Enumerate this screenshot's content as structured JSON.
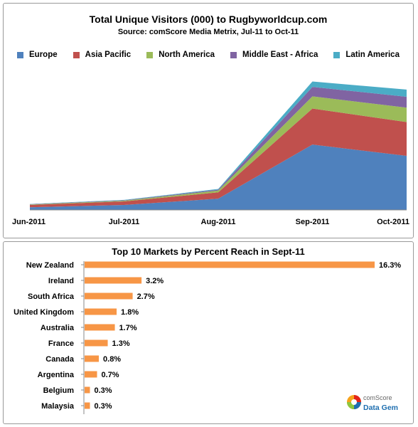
{
  "chart_data": [
    {
      "type": "area",
      "title": "Total Unique Visitors (000) to Rugbyworldcup.com",
      "subtitle": "Source: comScore Media Metrix, Jul-11 to Oct-11",
      "stacked": true,
      "x": [
        "Jun-2011",
        "Jul-2011",
        "Aug-2011",
        "Sep-2011",
        "Oct-2011"
      ],
      "ylim": [
        0,
        3000
      ],
      "grid": false,
      "legend": "top",
      "series": [
        {
          "name": "Europe",
          "color": "#4f81bd",
          "values": [
            60,
            110,
            250,
            1450,
            1200
          ]
        },
        {
          "name": "Asia Pacific",
          "color": "#c0504d",
          "values": [
            50,
            80,
            140,
            800,
            750
          ]
        },
        {
          "name": "North America",
          "color": "#9bbb59",
          "values": [
            10,
            15,
            40,
            270,
            320
          ]
        },
        {
          "name": "Middle East - Africa",
          "color": "#8064a2",
          "values": [
            8,
            10,
            20,
            210,
            240
          ]
        },
        {
          "name": "Latin America",
          "color": "#4bacc6",
          "values": [
            5,
            8,
            15,
            120,
            160
          ]
        }
      ]
    },
    {
      "type": "bar",
      "orientation": "horizontal",
      "title": "Top 10 Markets by Percent Reach in Sept-11",
      "categories": [
        "New Zealand",
        "Ireland",
        "South Africa",
        "United Kingdom",
        "Australia",
        "France",
        "Canada",
        "Argentina",
        "Belgium",
        "Malaysia"
      ],
      "values": [
        16.3,
        3.2,
        2.7,
        1.8,
        1.7,
        1.3,
        0.8,
        0.7,
        0.3,
        0.3
      ],
      "value_labels": [
        "16.3%",
        "3.2%",
        "2.7%",
        "1.8%",
        "1.7%",
        "1.3%",
        "0.8%",
        "0.7%",
        "0.3%",
        "0.3%"
      ],
      "xlim": [
        0,
        16.3
      ],
      "bar_color": "#f79646"
    }
  ],
  "logo": {
    "line1": "comScore",
    "line2": "Data Gem"
  }
}
